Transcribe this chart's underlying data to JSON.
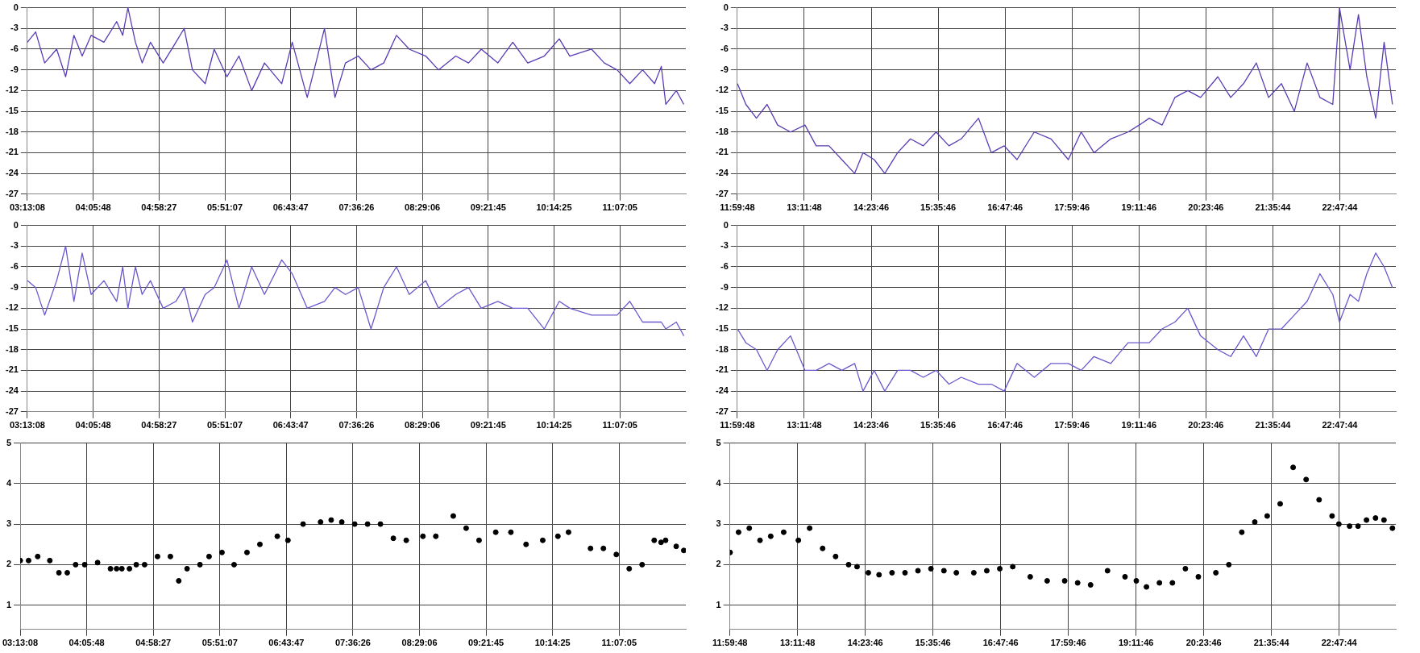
{
  "chart_data": [
    {
      "type": "line",
      "x": [
        3.22,
        3.33,
        3.45,
        3.61,
        3.73,
        3.84,
        3.95,
        4.07,
        4.24,
        4.41,
        4.49,
        4.56,
        4.66,
        4.75,
        4.86,
        5.03,
        5.2,
        5.31,
        5.42,
        5.59,
        5.71,
        5.88,
        6.04,
        6.21,
        6.38,
        6.61,
        6.75,
        6.95,
        7.18,
        7.32,
        7.46,
        7.63,
        7.8,
        7.97,
        8.14,
        8.31,
        8.53,
        8.7,
        8.93,
        9.1,
        9.27,
        9.49,
        9.69,
        9.89,
        10.11,
        10.31,
        10.45,
        10.74,
        10.91,
        11.08,
        11.25,
        11.42,
        11.58,
        11.67,
        11.73,
        11.87,
        11.97
      ],
      "xlim": [
        3.21889,
        11.99667
      ],
      "xticks": [
        {
          "value": 3.21889,
          "label": "03:13:08"
        },
        {
          "value": 4.09667,
          "label": "04:05:48"
        },
        {
          "value": 4.97417,
          "label": "04:58:27"
        },
        {
          "value": 5.85194,
          "label": "05:51:07"
        },
        {
          "value": 6.72972,
          "label": "06:43:47"
        },
        {
          "value": 7.60722,
          "label": "07:36:26"
        },
        {
          "value": 8.485,
          "label": "08:29:06"
        },
        {
          "value": 9.3625,
          "label": "09:21:45"
        },
        {
          "value": 10.24028,
          "label": "10:14:25"
        },
        {
          "value": 11.11806,
          "label": "11:07:05"
        }
      ],
      "ylim": [
        -27,
        0
      ],
      "yticks": [
        0,
        -3,
        -6,
        -9,
        -12,
        -15,
        -18,
        -21,
        -24,
        -27
      ],
      "grid": true,
      "series": [
        {
          "color": "#5a3cb4",
          "values": [
            -5,
            -3.5,
            -8,
            -6,
            -10,
            -4,
            -7,
            -4,
            -5,
            -2,
            -4,
            0,
            -5,
            -8,
            -5,
            -8,
            -5,
            -3,
            -9,
            -11,
            -6,
            -10,
            -7,
            -12,
            -8,
            -11,
            -5,
            -13,
            -3,
            -13,
            -8,
            -7,
            -9,
            -8,
            -4,
            -6,
            -7,
            -9,
            -7,
            -8,
            -6,
            -8,
            -5,
            -8,
            -7,
            -4.5,
            -7,
            -6,
            -8,
            -9,
            -11,
            -9,
            -11,
            -8.5,
            -14,
            -12,
            -14
          ]
        }
      ]
    },
    {
      "type": "line",
      "x": [
        12.0,
        12.15,
        12.34,
        12.53,
        12.72,
        12.95,
        13.21,
        13.41,
        13.64,
        13.87,
        14.1,
        14.25,
        14.45,
        14.64,
        14.87,
        15.1,
        15.33,
        15.56,
        15.79,
        16.01,
        16.32,
        16.55,
        16.78,
        17.01,
        17.32,
        17.62,
        17.93,
        18.16,
        18.39,
        18.69,
        19.0,
        19.2,
        19.38,
        19.61,
        19.84,
        20.07,
        20.3,
        20.61,
        20.84,
        21.07,
        21.3,
        21.52,
        21.75,
        21.98,
        22.21,
        22.44,
        22.67,
        22.79,
        22.98,
        23.13,
        23.28,
        23.44,
        23.59,
        23.74
      ],
      "xlim": [
        11.99667,
        23.8
      ],
      "xticks": [
        {
          "value": 11.99667,
          "label": "11:59:48"
        },
        {
          "value": 13.19667,
          "label": "13:11:48"
        },
        {
          "value": 14.39611,
          "label": "14:23:46"
        },
        {
          "value": 15.59611,
          "label": "15:35:46"
        },
        {
          "value": 16.79611,
          "label": "16:47:46"
        },
        {
          "value": 17.99611,
          "label": "17:59:46"
        },
        {
          "value": 19.19611,
          "label": "19:11:46"
        },
        {
          "value": 20.39611,
          "label": "20:23:46"
        },
        {
          "value": 21.59556,
          "label": "21:35:44"
        },
        {
          "value": 22.79556,
          "label": "22:47:44"
        }
      ],
      "ylim": [
        -27,
        0
      ],
      "yticks": [
        0,
        -3,
        -6,
        -9,
        -12,
        -15,
        -18,
        -21,
        -24,
        -27
      ],
      "grid": true,
      "series": [
        {
          "color": "#5a3cb4",
          "values": [
            -11,
            -14,
            -16,
            -14,
            -17,
            -18,
            -17,
            -20,
            -20,
            -22,
            -24,
            -21,
            -22,
            -24,
            -21,
            -19,
            -20,
            -18,
            -20,
            -19,
            -16,
            -21,
            -20,
            -22,
            -18,
            -19,
            -22,
            -18,
            -21,
            -19,
            -18,
            -17,
            -16,
            -17,
            -13,
            -12,
            -13,
            -10,
            -13,
            -11,
            -8,
            -13,
            -11,
            -15,
            -8,
            -13,
            -14,
            0,
            -9,
            -1,
            -10,
            -16,
            -5,
            -14
          ]
        }
      ]
    },
    {
      "type": "line",
      "x": [
        3.22,
        3.33,
        3.45,
        3.61,
        3.73,
        3.84,
        3.95,
        4.07,
        4.24,
        4.41,
        4.49,
        4.56,
        4.66,
        4.75,
        4.86,
        5.03,
        5.2,
        5.31,
        5.42,
        5.59,
        5.71,
        5.88,
        6.04,
        6.21,
        6.38,
        6.61,
        6.75,
        6.95,
        7.18,
        7.32,
        7.46,
        7.63,
        7.8,
        7.97,
        8.14,
        8.31,
        8.53,
        8.7,
        8.93,
        9.1,
        9.27,
        9.49,
        9.69,
        9.89,
        10.11,
        10.31,
        10.45,
        10.74,
        10.91,
        11.08,
        11.25,
        11.42,
        11.58,
        11.67,
        11.73,
        11.87,
        11.97
      ],
      "xlim": [
        3.21889,
        11.99667
      ],
      "xticks": [
        {
          "value": 3.21889,
          "label": "03:13:08"
        },
        {
          "value": 4.09667,
          "label": "04:05:48"
        },
        {
          "value": 4.97417,
          "label": "04:58:27"
        },
        {
          "value": 5.85194,
          "label": "05:51:07"
        },
        {
          "value": 6.72972,
          "label": "06:43:47"
        },
        {
          "value": 7.60722,
          "label": "07:36:26"
        },
        {
          "value": 8.485,
          "label": "08:29:06"
        },
        {
          "value": 9.3625,
          "label": "09:21:45"
        },
        {
          "value": 10.24028,
          "label": "10:14:25"
        },
        {
          "value": 11.11806,
          "label": "11:07:05"
        }
      ],
      "ylim": [
        -27,
        0
      ],
      "yticks": [
        0,
        -3,
        -6,
        -9,
        -12,
        -15,
        -18,
        -21,
        -24,
        -27
      ],
      "grid": true,
      "series": [
        {
          "color": "#6a5acd",
          "values": [
            -8,
            -9,
            -13,
            -8,
            -3,
            -11,
            -4,
            -10,
            -8,
            -11,
            -6,
            -12,
            -6,
            -10,
            -8,
            -12,
            -11,
            -9,
            -14,
            -10,
            -9,
            -5,
            -12,
            -6,
            -10,
            -5,
            -7,
            -12,
            -11,
            -9,
            -10,
            -9,
            -15,
            -9,
            -6,
            -10,
            -8,
            -12,
            -10,
            -9,
            -12,
            -11,
            -12,
            -12,
            -15,
            -11,
            -12,
            -13,
            -13,
            -13,
            -11,
            -14,
            -14,
            -14,
            -15,
            -14,
            -16
          ]
        }
      ]
    },
    {
      "type": "line",
      "x": [
        12.0,
        12.15,
        12.34,
        12.53,
        12.72,
        12.95,
        13.21,
        13.41,
        13.64,
        13.87,
        14.1,
        14.25,
        14.45,
        14.64,
        14.87,
        15.1,
        15.33,
        15.56,
        15.79,
        16.01,
        16.32,
        16.55,
        16.78,
        17.01,
        17.32,
        17.62,
        17.93,
        18.16,
        18.39,
        18.69,
        19.0,
        19.2,
        19.38,
        19.61,
        19.84,
        20.07,
        20.3,
        20.61,
        20.84,
        21.07,
        21.3,
        21.52,
        21.75,
        21.98,
        22.21,
        22.44,
        22.67,
        22.79,
        22.98,
        23.13,
        23.28,
        23.44,
        23.59,
        23.74
      ],
      "xlim": [
        11.99667,
        23.8
      ],
      "xticks": [
        {
          "value": 11.99667,
          "label": "11:59:48"
        },
        {
          "value": 13.19667,
          "label": "13:11:48"
        },
        {
          "value": 14.39611,
          "label": "14:23:46"
        },
        {
          "value": 15.59611,
          "label": "15:35:46"
        },
        {
          "value": 16.79611,
          "label": "16:47:46"
        },
        {
          "value": 17.99611,
          "label": "17:59:46"
        },
        {
          "value": 19.19611,
          "label": "19:11:46"
        },
        {
          "value": 20.39611,
          "label": "20:23:46"
        },
        {
          "value": 21.59556,
          "label": "21:35:44"
        },
        {
          "value": 22.79556,
          "label": "22:47:44"
        }
      ],
      "ylim": [
        -27,
        0
      ],
      "yticks": [
        0,
        -3,
        -6,
        -9,
        -12,
        -15,
        -18,
        -21,
        -24,
        -27
      ],
      "grid": true,
      "series": [
        {
          "color": "#6a5acd",
          "values": [
            -15,
            -17,
            -18,
            -21,
            -18,
            -16,
            -21,
            -21,
            -20,
            -21,
            -20,
            -24,
            -21,
            -24,
            -21,
            -21,
            -22,
            -21,
            -23,
            -22,
            -23,
            -23,
            -24,
            -20,
            -22,
            -20,
            -20,
            -21,
            -19,
            -20,
            -17,
            -17,
            -17,
            -15,
            -14,
            -12,
            -16,
            -18,
            -19,
            -16,
            -19,
            -15,
            -15,
            -13,
            -11,
            -7,
            -10,
            -14,
            -10,
            -11,
            -7,
            -4,
            -6,
            -9
          ]
        }
      ]
    },
    {
      "type": "scatter",
      "marker": "circle",
      "x": [
        3.22,
        3.33,
        3.45,
        3.61,
        3.73,
        3.84,
        3.95,
        4.07,
        4.24,
        4.41,
        4.49,
        4.56,
        4.66,
        4.75,
        4.86,
        5.03,
        5.2,
        5.31,
        5.42,
        5.59,
        5.71,
        5.88,
        6.04,
        6.21,
        6.38,
        6.61,
        6.75,
        6.95,
        7.18,
        7.32,
        7.46,
        7.63,
        7.8,
        7.97,
        8.14,
        8.31,
        8.53,
        8.7,
        8.93,
        9.1,
        9.27,
        9.49,
        9.69,
        9.89,
        10.11,
        10.31,
        10.45,
        10.74,
        10.91,
        11.08,
        11.25,
        11.42,
        11.58,
        11.67,
        11.73,
        11.87,
        11.97
      ],
      "xlim": [
        3.21889,
        11.99667
      ],
      "xticks": [
        {
          "value": 3.21889,
          "label": "03:13:08"
        },
        {
          "value": 4.09667,
          "label": "04:05:48"
        },
        {
          "value": 4.97417,
          "label": "04:58:27"
        },
        {
          "value": 5.85194,
          "label": "05:51:07"
        },
        {
          "value": 6.72972,
          "label": "06:43:47"
        },
        {
          "value": 7.60722,
          "label": "07:36:26"
        },
        {
          "value": 8.485,
          "label": "08:29:06"
        },
        {
          "value": 9.3625,
          "label": "09:21:45"
        },
        {
          "value": 10.24028,
          "label": "10:14:25"
        },
        {
          "value": 11.11806,
          "label": "11:07:05"
        }
      ],
      "ylim": [
        0.4,
        5
      ],
      "yticks": [
        1,
        2,
        3,
        4,
        5
      ],
      "grid": true,
      "series": [
        {
          "color": "#000000",
          "values": [
            2.1,
            2.1,
            2.2,
            2.1,
            1.8,
            1.8,
            2.0,
            2.0,
            2.05,
            1.9,
            1.9,
            1.9,
            1.9,
            2.0,
            2.0,
            2.2,
            2.2,
            1.6,
            1.9,
            2.0,
            2.2,
            2.3,
            2.0,
            2.3,
            2.5,
            2.7,
            2.6,
            3.0,
            3.05,
            3.1,
            3.05,
            3.0,
            3.0,
            3.0,
            2.65,
            2.6,
            2.7,
            2.7,
            3.2,
            2.9,
            2.6,
            2.8,
            2.8,
            2.5,
            2.6,
            2.7,
            2.8,
            2.4,
            2.4,
            2.25,
            1.9,
            2.0,
            2.6,
            2.55,
            2.6,
            2.45,
            2.35
          ]
        }
      ]
    },
    {
      "type": "scatter",
      "marker": "circle",
      "x": [
        12.0,
        12.15,
        12.34,
        12.53,
        12.72,
        12.95,
        13.21,
        13.41,
        13.64,
        13.87,
        14.1,
        14.25,
        14.45,
        14.64,
        14.87,
        15.1,
        15.33,
        15.56,
        15.79,
        16.01,
        16.32,
        16.55,
        16.78,
        17.01,
        17.32,
        17.62,
        17.93,
        18.16,
        18.39,
        18.69,
        19.0,
        19.2,
        19.38,
        19.61,
        19.84,
        20.07,
        20.3,
        20.61,
        20.84,
        21.07,
        21.3,
        21.52,
        21.75,
        21.98,
        22.21,
        22.44,
        22.67,
        22.79,
        22.98,
        23.13,
        23.28,
        23.44,
        23.59,
        23.74
      ],
      "xlim": [
        11.99667,
        23.8
      ],
      "xticks": [
        {
          "value": 11.99667,
          "label": "11:59:48"
        },
        {
          "value": 13.19667,
          "label": "13:11:48"
        },
        {
          "value": 14.39611,
          "label": "14:23:46"
        },
        {
          "value": 15.59611,
          "label": "15:35:46"
        },
        {
          "value": 16.79611,
          "label": "16:47:46"
        },
        {
          "value": 17.99611,
          "label": "17:59:46"
        },
        {
          "value": 19.19611,
          "label": "19:11:46"
        },
        {
          "value": 20.39611,
          "label": "20:23:46"
        },
        {
          "value": 21.59556,
          "label": "21:35:44"
        },
        {
          "value": 22.79556,
          "label": "22:47:44"
        }
      ],
      "ylim": [
        0.4,
        5
      ],
      "yticks": [
        1,
        2,
        3,
        4,
        5
      ],
      "grid": true,
      "series": [
        {
          "color": "#000000",
          "values": [
            2.3,
            2.8,
            2.9,
            2.6,
            2.7,
            2.8,
            2.6,
            2.9,
            2.4,
            2.2,
            2.0,
            1.95,
            1.8,
            1.75,
            1.8,
            1.8,
            1.85,
            1.9,
            1.85,
            1.8,
            1.8,
            1.85,
            1.9,
            1.95,
            1.7,
            1.6,
            1.6,
            1.55,
            1.5,
            1.85,
            1.7,
            1.6,
            1.45,
            1.55,
            1.55,
            1.9,
            1.7,
            1.8,
            2.0,
            2.8,
            3.05,
            3.2,
            3.5,
            4.4,
            4.1,
            3.6,
            3.2,
            3.0,
            2.95,
            2.95,
            3.1,
            3.15,
            3.1,
            2.9
          ]
        }
      ]
    }
  ]
}
